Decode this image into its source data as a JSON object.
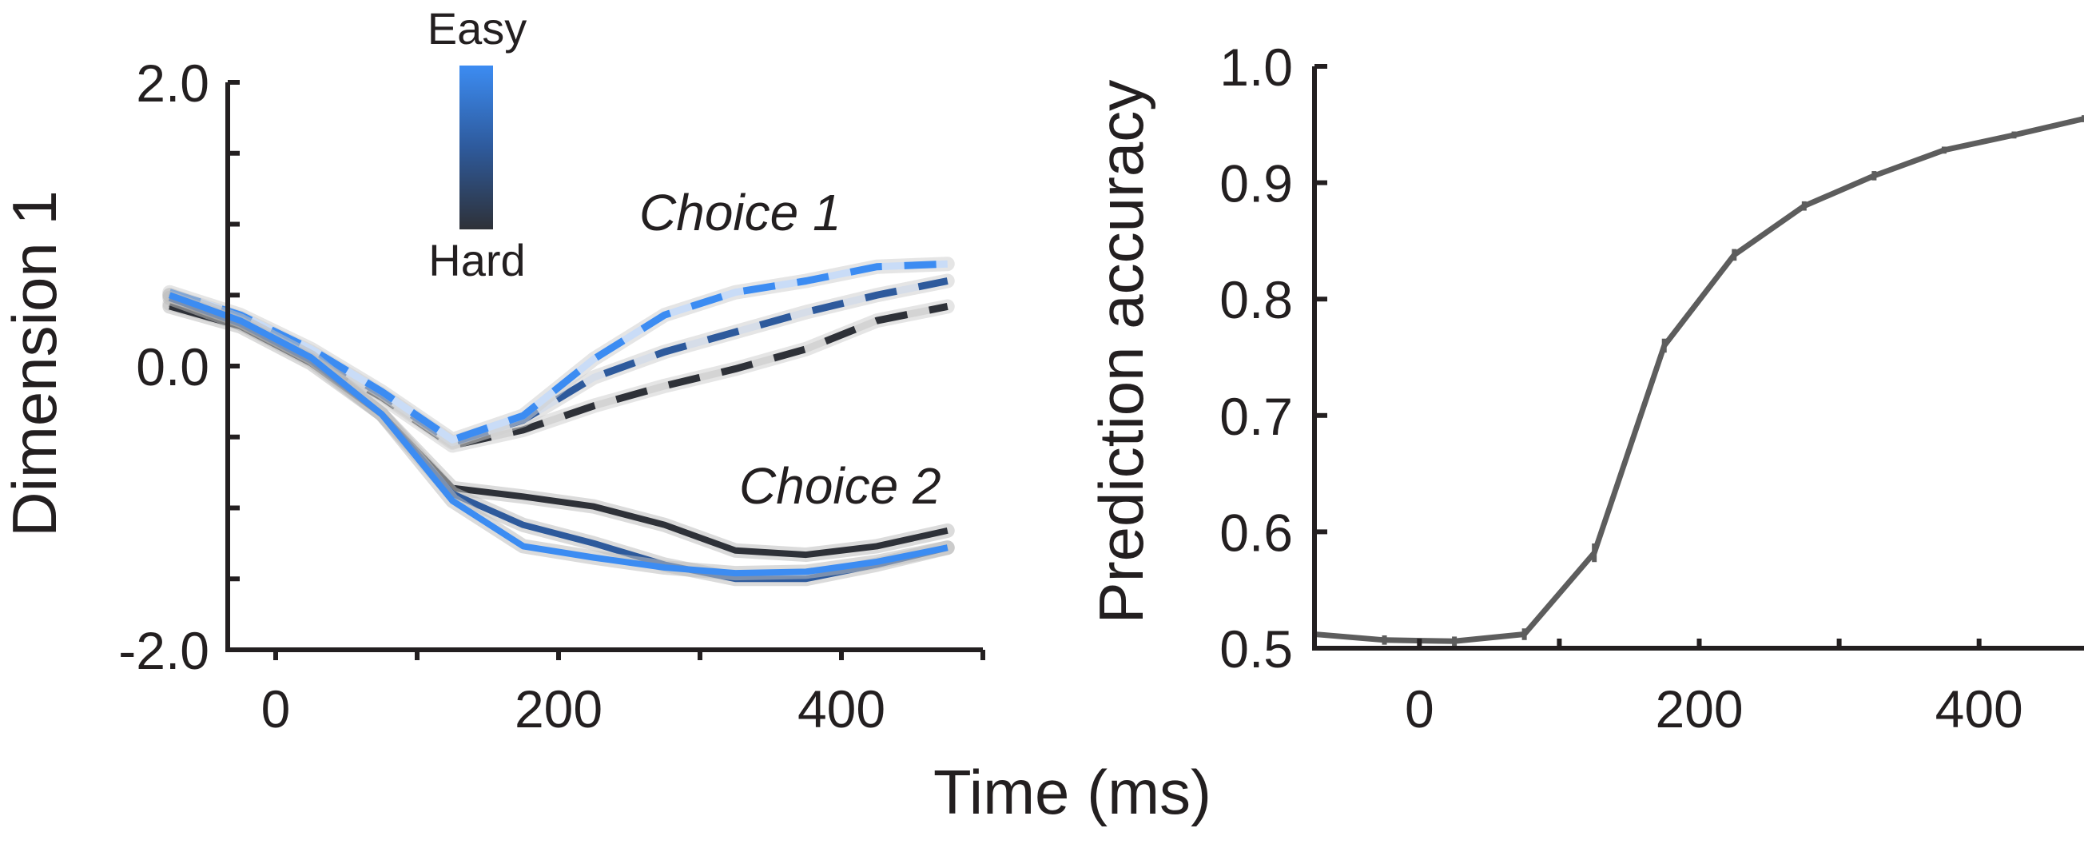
{
  "shared_xlabel": "Time (ms)",
  "legend": {
    "top_label": "Easy",
    "bottom_label": "Hard",
    "colors": {
      "easy": "#3c8cf2",
      "hard": "#2e3138"
    }
  },
  "chart_data": [
    {
      "type": "line",
      "ylabel": "Dimension 1",
      "xlabel": "",
      "xlim": [
        -100,
        500
      ],
      "ylim": [
        -2.0,
        2.0
      ],
      "xticks": [
        0,
        200,
        400
      ],
      "yticks": [
        "2.0",
        "0.0",
        "-2.0"
      ],
      "ytick_values": [
        2.0,
        0.0,
        -2.0
      ],
      "grid": false,
      "annotations": [
        "Choice 1",
        "Choice 2"
      ],
      "x": [
        -75,
        -25,
        25,
        75,
        125,
        175,
        225,
        275,
        325,
        375,
        425,
        475
      ],
      "series": [
        {
          "group": "Choice 1",
          "difficulty": "easy",
          "color": "#3c8cf2",
          "dash_color": "#c9dcf7",
          "style": "dashed",
          "values": [
            0.52,
            0.36,
            0.12,
            -0.18,
            -0.52,
            -0.35,
            0.05,
            0.36,
            0.52,
            0.6,
            0.7,
            0.72
          ]
        },
        {
          "group": "Choice 1",
          "difficulty": "medium",
          "color": "#2e5a9c",
          "dash_color": "#d6dde8",
          "style": "dashed",
          "values": [
            0.5,
            0.34,
            0.1,
            -0.2,
            -0.54,
            -0.38,
            -0.08,
            0.1,
            0.24,
            0.38,
            0.5,
            0.6
          ]
        },
        {
          "group": "Choice 1",
          "difficulty": "hard",
          "color": "#2e3138",
          "dash_color": "#d4d4d4",
          "style": "dashed",
          "values": [
            0.44,
            0.3,
            0.06,
            -0.22,
            -0.56,
            -0.45,
            -0.28,
            -0.14,
            -0.02,
            0.12,
            0.32,
            0.42
          ]
        },
        {
          "group": "Choice 2",
          "difficulty": "easy",
          "color": "#3c8cf2",
          "style": "solid",
          "values": [
            0.5,
            0.32,
            0.06,
            -0.34,
            -0.95,
            -1.27,
            -1.35,
            -1.42,
            -1.46,
            -1.45,
            -1.38,
            -1.28
          ]
        },
        {
          "group": "Choice 2",
          "difficulty": "medium",
          "color": "#2e5a9c",
          "style": "solid",
          "values": [
            0.48,
            0.3,
            0.04,
            -0.34,
            -0.9,
            -1.12,
            -1.25,
            -1.4,
            -1.5,
            -1.5,
            -1.4,
            -1.28
          ]
        },
        {
          "group": "Choice 2",
          "difficulty": "hard",
          "color": "#2e3138",
          "style": "solid",
          "values": [
            0.42,
            0.28,
            0.02,
            -0.34,
            -0.86,
            -0.92,
            -0.99,
            -1.12,
            -1.3,
            -1.33,
            -1.27,
            -1.16
          ]
        }
      ]
    },
    {
      "type": "line",
      "ylabel": "Prediction accuracy",
      "xlabel": "",
      "xlim": [
        -75,
        475
      ],
      "ylim": [
        0.5,
        1.0
      ],
      "xticks": [
        0,
        200,
        400
      ],
      "yticks": [
        "1.0",
        "0.9",
        "0.8",
        "0.7",
        "0.6",
        "0.5"
      ],
      "ytick_values": [
        1.0,
        0.9,
        0.8,
        0.7,
        0.6,
        0.5
      ],
      "grid": false,
      "series": [
        {
          "color": "#5d5d5d",
          "x": [
            -75,
            -25,
            25,
            75,
            125,
            175,
            225,
            275,
            325,
            375,
            425,
            475
          ],
          "values": [
            0.512,
            0.507,
            0.506,
            0.512,
            0.582,
            0.76,
            0.838,
            0.88,
            0.906,
            0.928,
            0.941,
            0.955
          ],
          "errors": [
            0.004,
            0.004,
            0.004,
            0.005,
            0.008,
            0.006,
            0.005,
            0.004,
            0.004,
            0.003,
            0.003,
            0.003
          ]
        }
      ]
    }
  ]
}
